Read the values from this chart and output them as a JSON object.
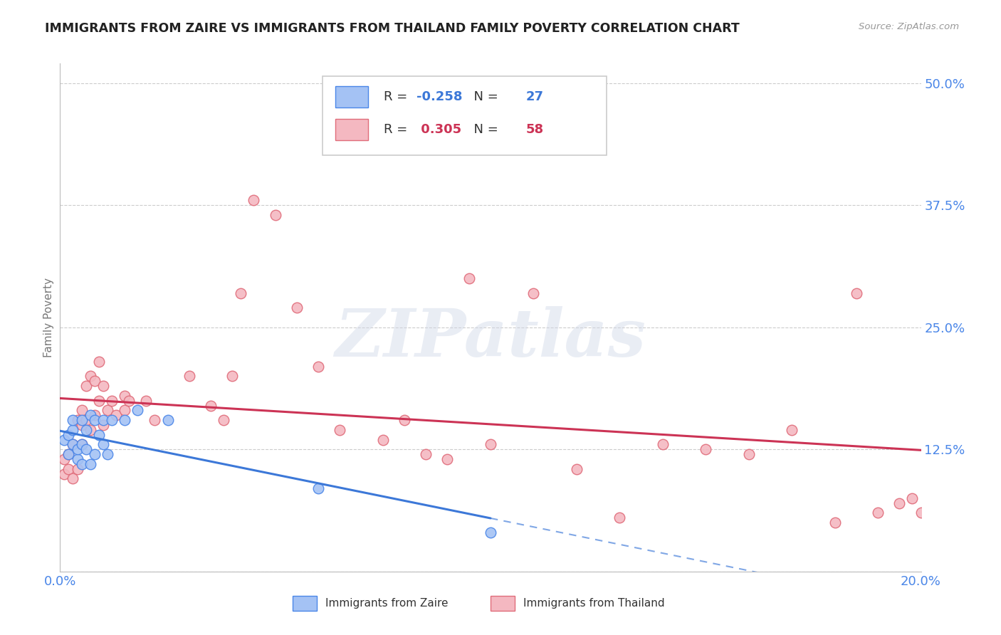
{
  "title": "IMMIGRANTS FROM ZAIRE VS IMMIGRANTS FROM THAILAND FAMILY POVERTY CORRELATION CHART",
  "source": "Source: ZipAtlas.com",
  "ylabel": "Family Poverty",
  "xlim": [
    0.0,
    0.2
  ],
  "ylim": [
    0.0,
    0.52
  ],
  "yticks": [
    0.0,
    0.125,
    0.25,
    0.375,
    0.5
  ],
  "ytick_labels": [
    "",
    "12.5%",
    "25.0%",
    "37.5%",
    "50.0%"
  ],
  "xticks": [
    0.0,
    0.05,
    0.1,
    0.15,
    0.2
  ],
  "xtick_labels": [
    "0.0%",
    "",
    "",
    "",
    "20.0%"
  ],
  "zaire_color": "#a4c2f4",
  "thailand_color": "#f4b8c1",
  "zaire_edge_color": "#4a86e8",
  "thailand_edge_color": "#e06c7a",
  "zaire_line_color": "#3c78d8",
  "thailand_line_color": "#cc3355",
  "R_zaire": "-0.258",
  "N_zaire": "27",
  "R_thailand": "0.305",
  "N_thailand": "58",
  "background_color": "#ffffff",
  "grid_color": "#cccccc",
  "title_color": "#222222",
  "axis_label_color": "#777777",
  "tick_color": "#4a86e8",
  "watermark_text": "ZIPatlas",
  "legend_text_color": "#333333",
  "zaire_x": [
    0.001,
    0.002,
    0.002,
    0.003,
    0.003,
    0.003,
    0.004,
    0.004,
    0.005,
    0.005,
    0.005,
    0.006,
    0.006,
    0.007,
    0.007,
    0.008,
    0.008,
    0.009,
    0.01,
    0.01,
    0.011,
    0.012,
    0.015,
    0.018,
    0.025,
    0.06,
    0.1
  ],
  "zaire_y": [
    0.135,
    0.12,
    0.14,
    0.13,
    0.145,
    0.155,
    0.115,
    0.125,
    0.11,
    0.13,
    0.155,
    0.125,
    0.145,
    0.11,
    0.16,
    0.12,
    0.155,
    0.14,
    0.13,
    0.155,
    0.12,
    0.155,
    0.155,
    0.165,
    0.155,
    0.085,
    0.04
  ],
  "thailand_x": [
    0.001,
    0.001,
    0.002,
    0.002,
    0.003,
    0.003,
    0.004,
    0.004,
    0.005,
    0.005,
    0.005,
    0.006,
    0.006,
    0.007,
    0.007,
    0.008,
    0.008,
    0.009,
    0.009,
    0.01,
    0.01,
    0.011,
    0.012,
    0.013,
    0.015,
    0.015,
    0.016,
    0.02,
    0.022,
    0.03,
    0.035,
    0.038,
    0.04,
    0.042,
    0.045,
    0.05,
    0.055,
    0.06,
    0.065,
    0.075,
    0.08,
    0.085,
    0.09,
    0.095,
    0.1,
    0.11,
    0.12,
    0.13,
    0.14,
    0.15,
    0.16,
    0.17,
    0.18,
    0.185,
    0.19,
    0.195,
    0.198,
    0.2
  ],
  "thailand_y": [
    0.1,
    0.115,
    0.12,
    0.105,
    0.095,
    0.13,
    0.155,
    0.105,
    0.15,
    0.165,
    0.13,
    0.155,
    0.19,
    0.145,
    0.2,
    0.16,
    0.195,
    0.175,
    0.215,
    0.15,
    0.19,
    0.165,
    0.175,
    0.16,
    0.165,
    0.18,
    0.175,
    0.175,
    0.155,
    0.2,
    0.17,
    0.155,
    0.2,
    0.285,
    0.38,
    0.365,
    0.27,
    0.21,
    0.145,
    0.135,
    0.155,
    0.12,
    0.115,
    0.3,
    0.13,
    0.285,
    0.105,
    0.055,
    0.13,
    0.125,
    0.12,
    0.145,
    0.05,
    0.285,
    0.06,
    0.07,
    0.075,
    0.06
  ]
}
